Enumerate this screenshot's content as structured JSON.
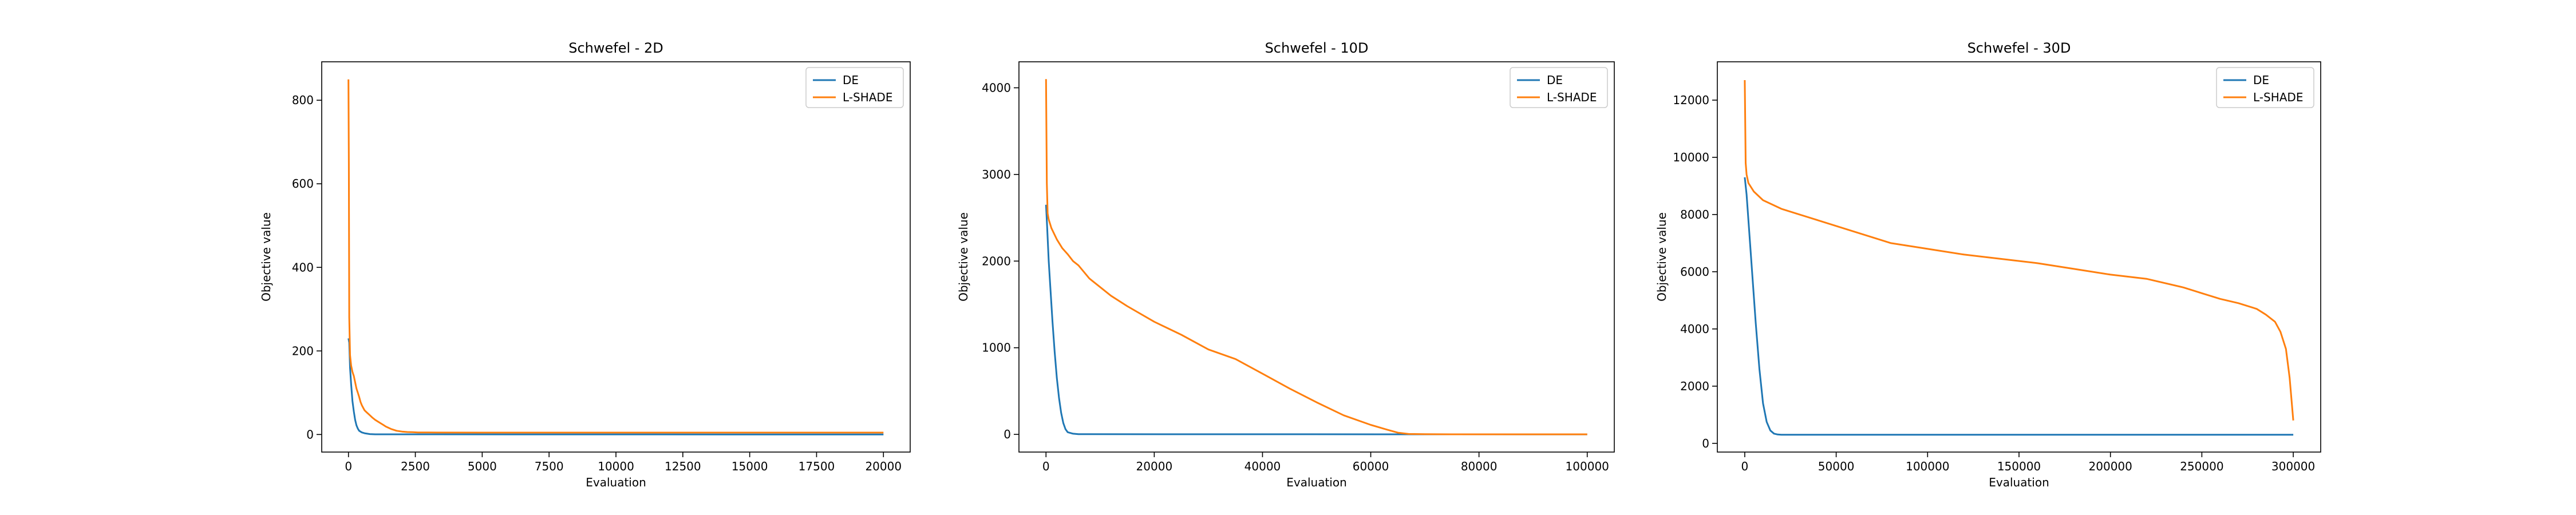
{
  "colors": {
    "DE": "#1f77b4",
    "L-SHADE": "#ff7f0e",
    "axes": "#000000",
    "legend_border": "#cccccc"
  },
  "chart_data": [
    {
      "type": "line",
      "title": "Schwefel - 2D",
      "xlabel": "Evaluation",
      "ylabel": "Objective value",
      "xlim": [
        -1000,
        21000
      ],
      "ylim": [
        -42,
        892
      ],
      "xticks": [
        0,
        2500,
        5000,
        7500,
        10000,
        12500,
        15000,
        17500,
        20000
      ],
      "xtick_labels": [
        "0",
        "2500",
        "5000",
        "7500",
        "10000",
        "12500",
        "15000",
        "17500",
        "20000"
      ],
      "yticks": [
        0,
        200,
        400,
        600,
        800
      ],
      "ytick_labels": [
        "0",
        "200",
        "400",
        "600",
        "800"
      ],
      "legend": {
        "position": "upper right",
        "entries": [
          "DE",
          "L-SHADE"
        ]
      },
      "series": [
        {
          "name": "DE",
          "x": [
            0,
            30,
            60,
            100,
            150,
            200,
            250,
            300,
            350,
            400,
            500,
            600,
            800,
            1000,
            20000
          ],
          "y": [
            230,
            220,
            160,
            120,
            80,
            55,
            35,
            22,
            14,
            9,
            5,
            3,
            1,
            0.5,
            0
          ]
        },
        {
          "name": "L-SHADE",
          "x": [
            0,
            15,
            30,
            60,
            100,
            150,
            200,
            250,
            300,
            350,
            400,
            450,
            500,
            550,
            600,
            700,
            800,
            900,
            1000,
            1100,
            1200,
            1300,
            1400,
            1500,
            1600,
            1700,
            1800,
            2000,
            2200,
            2400,
            2600,
            3000,
            5000,
            10000,
            15000,
            20000
          ],
          "y": [
            850,
            650,
            280,
            190,
            165,
            150,
            140,
            125,
            110,
            100,
            90,
            78,
            70,
            64,
            58,
            52,
            46,
            40,
            35,
            31,
            27,
            23,
            19,
            16,
            13,
            11,
            9,
            7,
            6,
            5.5,
            5,
            4.8,
            4.5,
            4.5,
            4.5,
            4.5
          ]
        }
      ]
    },
    {
      "type": "line",
      "title": "Schwefel - 10D",
      "xlabel": "Evaluation",
      "ylabel": "Objective value",
      "xlim": [
        -5000,
        105000
      ],
      "ylim": [
        -204,
        4300
      ],
      "xticks": [
        0,
        20000,
        40000,
        60000,
        80000,
        100000
      ],
      "xtick_labels": [
        "0",
        "20000",
        "40000",
        "60000",
        "80000",
        "100000"
      ],
      "yticks": [
        0,
        1000,
        2000,
        3000,
        4000
      ],
      "ytick_labels": [
        "0",
        "1000",
        "2000",
        "3000",
        "4000"
      ],
      "legend": {
        "position": "upper right",
        "entries": [
          "DE",
          "L-SHADE"
        ]
      },
      "series": [
        {
          "name": "DE",
          "x": [
            0,
            200,
            500,
            800,
            1200,
            1600,
            2000,
            2400,
            2800,
            3200,
            3600,
            4000,
            5000,
            6000,
            100000
          ],
          "y": [
            2650,
            2400,
            2000,
            1700,
            1300,
            950,
            650,
            420,
            250,
            130,
            60,
            25,
            8,
            2,
            0
          ]
        },
        {
          "name": "L-SHADE",
          "x": [
            0,
            150,
            300,
            500,
            1000,
            2000,
            3000,
            4000,
            5000,
            6000,
            8000,
            10000,
            12000,
            15000,
            20000,
            25000,
            30000,
            35000,
            40000,
            45000,
            50000,
            55000,
            60000,
            63000,
            65000,
            67000,
            70000,
            75000,
            80000,
            90000,
            100000
          ],
          "y": [
            4100,
            2900,
            2550,
            2480,
            2380,
            2250,
            2150,
            2080,
            2000,
            1950,
            1800,
            1700,
            1600,
            1480,
            1300,
            1150,
            980,
            870,
            700,
            530,
            370,
            220,
            110,
            55,
            20,
            5,
            2,
            1,
            0.5,
            0.5,
            0.5
          ]
        }
      ]
    },
    {
      "type": "line",
      "title": "Schwefel - 30D",
      "xlabel": "Evaluation",
      "ylabel": "Objective value",
      "xlim": [
        -15000,
        315000
      ],
      "ylim": [
        -305,
        13340
      ],
      "xticks": [
        0,
        50000,
        100000,
        150000,
        200000,
        250000,
        300000
      ],
      "xtick_labels": [
        "0",
        "50000",
        "100000",
        "150000",
        "200000",
        "250000",
        "300000"
      ],
      "yticks": [
        0,
        2000,
        4000,
        6000,
        8000,
        10000,
        12000
      ],
      "ytick_labels": [
        "0",
        "2000",
        "4000",
        "6000",
        "8000",
        "10000",
        "12000"
      ],
      "legend": {
        "position": "upper right",
        "entries": [
          "DE",
          "L-SHADE"
        ]
      },
      "series": [
        {
          "name": "DE",
          "x": [
            0,
            1000,
            2000,
            4000,
            6000,
            8000,
            10000,
            12000,
            14000,
            16000,
            18000,
            20000,
            25000,
            30000,
            300000
          ],
          "y": [
            9300,
            8700,
            7800,
            6000,
            4200,
            2600,
            1400,
            750,
            450,
            340,
            310,
            300,
            300,
            300,
            300
          ]
        },
        {
          "name": "L-SHADE",
          "x": [
            0,
            500,
            1000,
            2000,
            5000,
            10000,
            20000,
            30000,
            40000,
            50000,
            60000,
            70000,
            80000,
            90000,
            100000,
            120000,
            140000,
            160000,
            180000,
            200000,
            220000,
            240000,
            250000,
            260000,
            270000,
            280000,
            285000,
            290000,
            293000,
            296000,
            298000,
            300000
          ],
          "y": [
            12700,
            9800,
            9400,
            9100,
            8800,
            8500,
            8200,
            8000,
            7800,
            7600,
            7400,
            7200,
            7000,
            6900,
            6800,
            6600,
            6450,
            6300,
            6100,
            5900,
            5750,
            5450,
            5250,
            5050,
            4900,
            4700,
            4500,
            4250,
            3900,
            3300,
            2300,
            800
          ]
        }
      ]
    }
  ]
}
